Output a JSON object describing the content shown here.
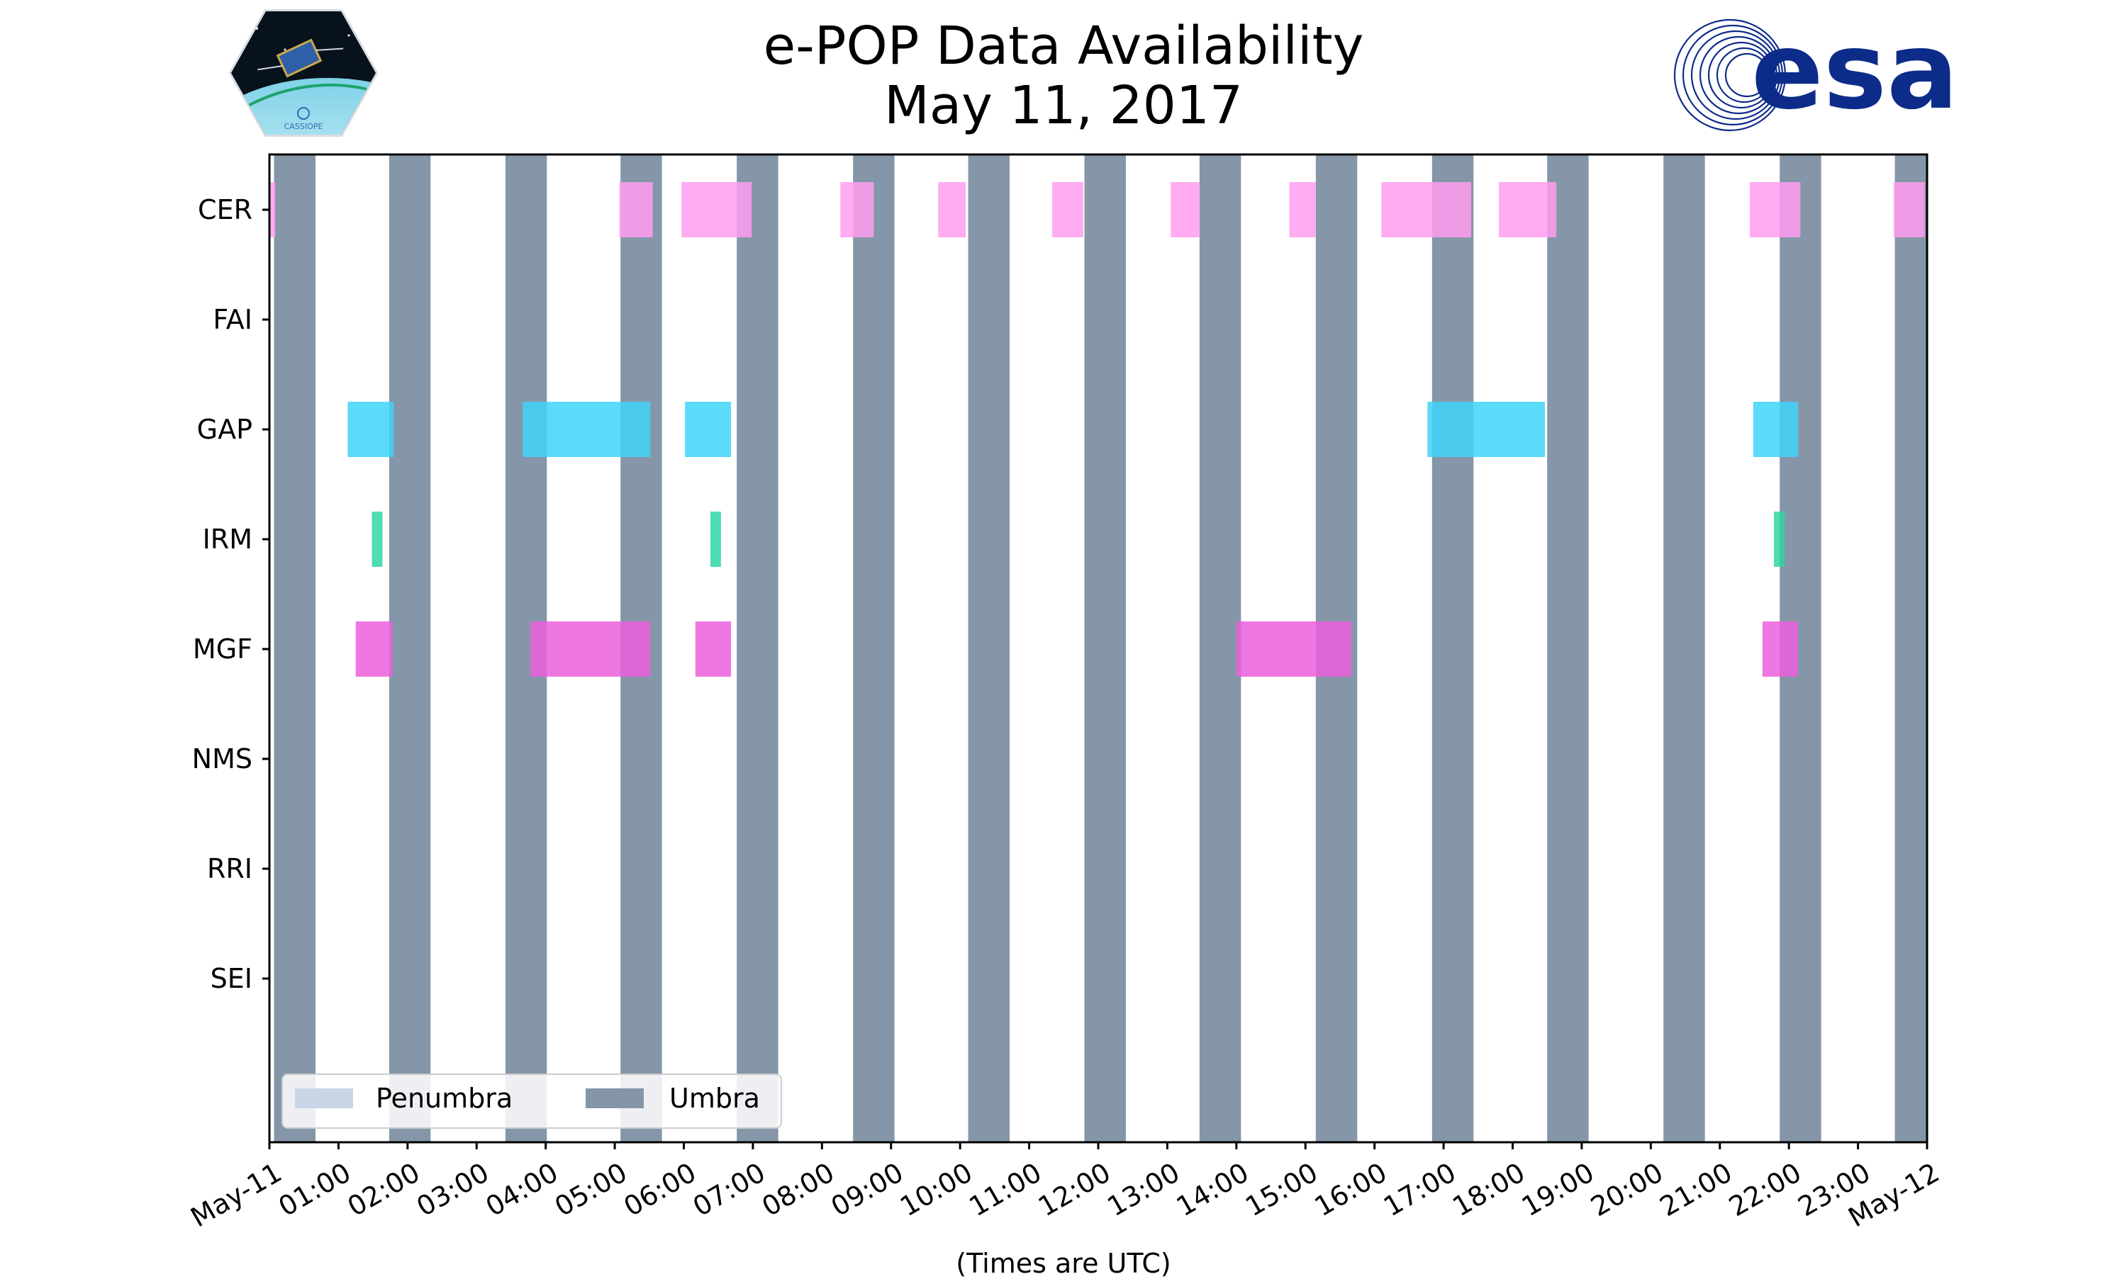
{
  "chart_data": {
    "type": "timeline",
    "title": "e-POP Data Availability",
    "subtitle": "May 11, 2017",
    "xlabel": "(Times are UTC)",
    "ylabel": "",
    "xlim": [
      "May-11 00:00",
      "May-12 00:00"
    ],
    "x_tick_labels": [
      "May-11",
      "01:00",
      "02:00",
      "03:00",
      "04:00",
      "05:00",
      "06:00",
      "07:00",
      "08:00",
      "09:00",
      "10:00",
      "11:00",
      "12:00",
      "13:00",
      "14:00",
      "15:00",
      "16:00",
      "17:00",
      "18:00",
      "19:00",
      "20:00",
      "21:00",
      "22:00",
      "23:00",
      "May-12"
    ],
    "categories": [
      "CER",
      "FAI",
      "GAP",
      "IRM",
      "MGF",
      "NMS",
      "RRI",
      "SEI"
    ],
    "legend": {
      "position": "lower-left",
      "entries": [
        "Penumbra",
        "Umbra"
      ]
    },
    "colors": {
      "penumbra": "#c9d6e6",
      "umbra": "#8496a8",
      "CER": "#ff9ef0",
      "GAP": "#3fd4f8",
      "IRM": "#2fd6a4",
      "MGF": "#ec5fdc"
    },
    "umbra_intervals": [
      [
        "00:04",
        "00:40"
      ],
      [
        "01:44",
        "02:20"
      ],
      [
        "03:25",
        "04:01"
      ],
      [
        "05:05",
        "05:41"
      ],
      [
        "06:46",
        "07:22"
      ],
      [
        "08:27",
        "09:03"
      ],
      [
        "10:07",
        "10:43"
      ],
      [
        "11:48",
        "12:24"
      ],
      [
        "13:28",
        "14:04"
      ],
      [
        "15:09",
        "15:45"
      ],
      [
        "16:50",
        "17:26"
      ],
      [
        "18:30",
        "19:06"
      ],
      [
        "20:11",
        "20:47"
      ],
      [
        "21:52",
        "22:28"
      ],
      [
        "23:32",
        "24:00"
      ]
    ],
    "series": [
      {
        "name": "CER",
        "intervals": [
          [
            "00:00",
            "00:05"
          ],
          [
            "05:04",
            "05:33"
          ],
          [
            "05:58",
            "06:59"
          ],
          [
            "08:16",
            "08:45"
          ],
          [
            "09:41",
            "10:05"
          ],
          [
            "11:20",
            "11:47"
          ],
          [
            "13:03",
            "13:28"
          ],
          [
            "14:46",
            "15:09"
          ],
          [
            "16:06",
            "17:24"
          ],
          [
            "17:48",
            "18:38"
          ],
          [
            "21:26",
            "22:10"
          ],
          [
            "23:31",
            "23:58"
          ]
        ]
      },
      {
        "name": "FAI",
        "intervals": []
      },
      {
        "name": "GAP",
        "intervals": [
          [
            "01:08",
            "01:48"
          ],
          [
            "03:40",
            "05:31"
          ],
          [
            "06:01",
            "06:41"
          ],
          [
            "16:46",
            "18:28"
          ],
          [
            "21:29",
            "22:08"
          ]
        ]
      },
      {
        "name": "IRM",
        "intervals": [
          [
            "01:29",
            "01:38"
          ],
          [
            "06:23",
            "06:31"
          ],
          [
            "21:47",
            "21:56"
          ]
        ]
      },
      {
        "name": "MGF",
        "intervals": [
          [
            "01:15",
            "01:47"
          ],
          [
            "03:47",
            "05:31"
          ],
          [
            "06:10",
            "06:41"
          ],
          [
            "14:00",
            "15:40"
          ],
          [
            "21:37",
            "22:08"
          ]
        ]
      },
      {
        "name": "NMS",
        "intervals": []
      },
      {
        "name": "RRI",
        "intervals": []
      },
      {
        "name": "SEI",
        "intervals": []
      }
    ]
  },
  "logos": {
    "left": {
      "name": "CASSIOPE",
      "text": "CASSIOPE"
    },
    "right": {
      "name": "esa",
      "text": "esa",
      "color": "#0d2c8a"
    }
  }
}
